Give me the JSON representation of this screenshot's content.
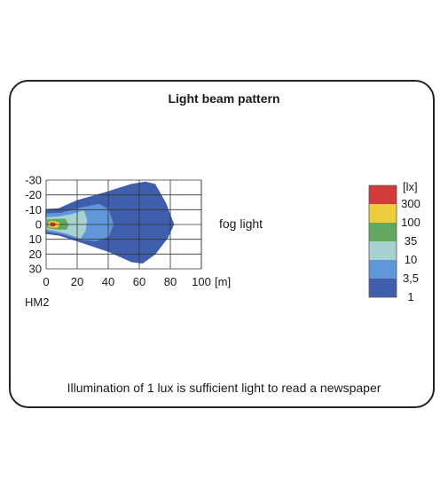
{
  "chart_data": {
    "type": "heatmap",
    "title": "Light beam pattern",
    "x_ticks": [
      0,
      20,
      40,
      60,
      80,
      100
    ],
    "x_unit": "[m]",
    "y_ticks": [
      -30,
      -20,
      -10,
      0,
      10,
      20,
      30
    ],
    "xlim": [
      0,
      100
    ],
    "ylim": [
      -30,
      30
    ],
    "grid": true,
    "series_label": "fog light",
    "model": "HM2",
    "legend": {
      "unit": "[lx]",
      "placement": "right",
      "levels": [
        {
          "label": "300",
          "color": "#d23b3b"
        },
        {
          "label": "100",
          "color": "#efcd3a"
        },
        {
          "label": "35",
          "color": "#63a862"
        },
        {
          "label": "10",
          "color": "#a6d2cf"
        },
        {
          "label": "3,5",
          "color": "#5f97d8"
        },
        {
          "label": "1",
          "color": "#3f5fac"
        }
      ]
    },
    "contours": [
      {
        "lux": "1",
        "color": "#3f5fac",
        "points": [
          [
            0,
            -10
          ],
          [
            8,
            -10.5
          ],
          [
            20,
            -16
          ],
          [
            40,
            -22
          ],
          [
            55,
            -27
          ],
          [
            64,
            -28.5
          ],
          [
            70,
            -27
          ],
          [
            77,
            -14
          ],
          [
            82,
            0
          ],
          [
            78,
            9
          ],
          [
            70,
            20
          ],
          [
            62,
            26
          ],
          [
            55,
            25
          ],
          [
            40,
            18
          ],
          [
            20,
            11
          ],
          [
            8,
            7
          ],
          [
            0,
            6
          ]
        ]
      },
      {
        "lux": "3,5",
        "color": "#5f97d8",
        "points": [
          [
            0,
            -7
          ],
          [
            10,
            -7.5
          ],
          [
            22,
            -11
          ],
          [
            34,
            -13.5
          ],
          [
            40,
            -10
          ],
          [
            43,
            0
          ],
          [
            40,
            8
          ],
          [
            32,
            11
          ],
          [
            22,
            10
          ],
          [
            10,
            6
          ],
          [
            0,
            4.5
          ]
        ]
      },
      {
        "lux": "10",
        "color": "#a6d2cf",
        "points": [
          [
            0,
            -4.5
          ],
          [
            8,
            -5
          ],
          [
            16,
            -6.5
          ],
          [
            24,
            -9
          ],
          [
            26,
            -3
          ],
          [
            25,
            4
          ],
          [
            22,
            9
          ],
          [
            14,
            6
          ],
          [
            6,
            4
          ],
          [
            0,
            3
          ]
        ]
      },
      {
        "lux": "35",
        "color": "#63a862",
        "points": [
          [
            1,
            -3
          ],
          [
            7,
            -3.3
          ],
          [
            12,
            -3.5
          ],
          [
            14,
            0
          ],
          [
            13,
            3
          ],
          [
            8,
            3
          ],
          [
            3,
            2.5
          ],
          [
            1,
            2
          ]
        ]
      },
      {
        "lux": "100",
        "color": "#efcd3a",
        "points": [
          [
            2,
            -1.8
          ],
          [
            5,
            -2
          ],
          [
            8,
            -1
          ],
          [
            8.5,
            0
          ],
          [
            7,
            1.8
          ],
          [
            4,
            1.8
          ],
          [
            2,
            1.5
          ]
        ]
      },
      {
        "lux": "300",
        "color": "#d23b3b",
        "points": [
          [
            3,
            -1
          ],
          [
            5,
            -1
          ],
          [
            6,
            0
          ],
          [
            5,
            0.9
          ],
          [
            3,
            0.9
          ]
        ]
      }
    ]
  },
  "caption": "Illumination of 1 lux is sufficient light to read a newspaper"
}
